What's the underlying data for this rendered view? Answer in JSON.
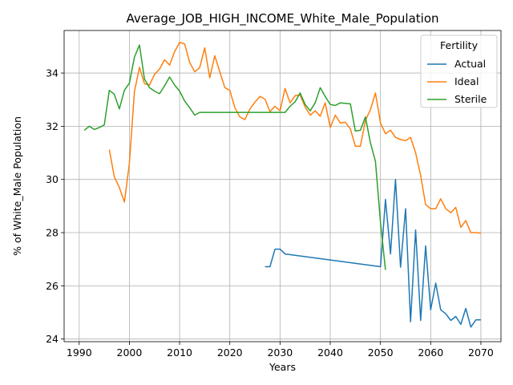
{
  "chart_data": {
    "type": "line",
    "title": "Average_JOB_HIGH_INCOME_White_Male_Population",
    "xlabel": "Years",
    "ylabel": "% of White_Male Population",
    "xlim": [
      1987,
      2074
    ],
    "ylim": [
      23.9,
      35.6
    ],
    "xticks": [
      1990,
      2000,
      2010,
      2020,
      2030,
      2040,
      2050,
      2060,
      2070
    ],
    "yticks": [
      24,
      26,
      28,
      30,
      32,
      34
    ],
    "grid": true,
    "legend": {
      "title": "Fertility",
      "placement": "top-right"
    },
    "series": [
      {
        "name": "Actual",
        "color": "#1f77b4",
        "x": [
          2027,
          2028,
          2029,
          2030,
          2031,
          2050,
          2051,
          2052,
          2053,
          2054,
          2055,
          2056,
          2057,
          2058,
          2059,
          2060,
          2061,
          2062,
          2063,
          2064,
          2065,
          2066,
          2067,
          2068,
          2069,
          2070
        ],
        "y": [
          26.72,
          26.72,
          27.38,
          27.38,
          27.2,
          26.72,
          29.25,
          27.2,
          30.0,
          26.7,
          28.9,
          24.65,
          28.1,
          24.7,
          27.5,
          25.1,
          26.1,
          25.1,
          24.95,
          24.7,
          24.85,
          24.55,
          25.15,
          24.45,
          24.72,
          24.72
        ]
      },
      {
        "name": "Ideal",
        "color": "#ff7f0e",
        "x": [
          1996,
          1997,
          1998,
          1999,
          2000,
          2001,
          2002,
          2003,
          2004,
          2005,
          2006,
          2007,
          2008,
          2009,
          2010,
          2011,
          2012,
          2013,
          2014,
          2015,
          2016,
          2017,
          2018,
          2019,
          2020,
          2021,
          2022,
          2023,
          2024,
          2025,
          2026,
          2027,
          2028,
          2029,
          2030,
          2031,
          2032,
          2033,
          2034,
          2035,
          2036,
          2037,
          2038,
          2039,
          2040,
          2041,
          2042,
          2043,
          2044,
          2045,
          2046,
          2047,
          2048,
          2049,
          2050,
          2051,
          2052,
          2053,
          2054,
          2055,
          2056,
          2057,
          2058,
          2059,
          2060,
          2061,
          2062,
          2063,
          2064,
          2065,
          2066,
          2067,
          2068,
          2069,
          2070
        ],
        "y": [
          31.12,
          30.1,
          29.7,
          29.15,
          30.6,
          33.3,
          34.22,
          33.6,
          33.55,
          33.95,
          34.15,
          34.5,
          34.3,
          34.8,
          35.15,
          35.1,
          34.4,
          34.05,
          34.2,
          34.95,
          33.82,
          34.65,
          34.05,
          33.45,
          33.35,
          32.7,
          32.35,
          32.25,
          32.65,
          32.9,
          33.12,
          33.02,
          32.55,
          32.75,
          32.58,
          33.42,
          32.88,
          33.15,
          33.18,
          32.72,
          32.42,
          32.58,
          32.38,
          32.88,
          31.95,
          32.42,
          32.12,
          32.15,
          31.9,
          31.25,
          31.25,
          32.22,
          32.62,
          33.25,
          32.12,
          31.72,
          31.85,
          31.58,
          31.5,
          31.46,
          31.58,
          31.0,
          30.15,
          29.05,
          28.9,
          28.9,
          29.27,
          28.9,
          28.75,
          28.95,
          28.2,
          28.45,
          28.0,
          28.0,
          27.98
        ]
      },
      {
        "name": "Sterile",
        "color": "#2ca02c",
        "x": [
          1991,
          1992,
          1993,
          1994,
          1995,
          1996,
          1997,
          1998,
          1999,
          2000,
          2001,
          2002,
          2003,
          2004,
          2005,
          2006,
          2007,
          2008,
          2009,
          2010,
          2011,
          2012,
          2013,
          2014,
          2015,
          2016,
          2017,
          2018,
          2019,
          2020,
          2021,
          2022,
          2023,
          2024,
          2025,
          2026,
          2027,
          2028,
          2029,
          2030,
          2031,
          2032,
          2033,
          2034,
          2035,
          2036,
          2037,
          2038,
          2039,
          2040,
          2041,
          2042,
          2043,
          2044,
          2045,
          2046,
          2047,
          2048,
          2049,
          2050,
          2051
        ],
        "y": [
          31.85,
          32.0,
          31.88,
          31.95,
          32.05,
          33.35,
          33.2,
          32.65,
          33.35,
          33.62,
          34.6,
          35.05,
          33.78,
          33.45,
          33.32,
          33.22,
          33.52,
          33.85,
          33.55,
          33.32,
          32.95,
          32.7,
          32.42,
          32.52,
          32.52,
          32.52,
          32.52,
          32.52,
          32.52,
          32.52,
          32.52,
          32.52,
          32.52,
          32.52,
          32.52,
          32.52,
          32.52,
          32.52,
          32.52,
          32.52,
          32.52,
          32.75,
          32.92,
          33.25,
          32.82,
          32.58,
          32.88,
          33.45,
          33.12,
          32.82,
          32.78,
          32.88,
          32.86,
          32.84,
          31.82,
          31.85,
          32.35,
          31.38,
          30.68,
          28.38,
          26.6
        ]
      }
    ]
  }
}
